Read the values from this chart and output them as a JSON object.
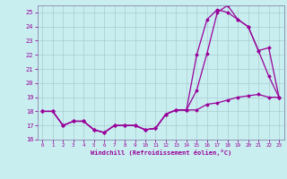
{
  "xlabel": "Windchill (Refroidissement éolien,°C)",
  "xlim": [
    -0.5,
    23.5
  ],
  "ylim": [
    16,
    25.5
  ],
  "yticks": [
    16,
    17,
    18,
    19,
    20,
    21,
    22,
    23,
    24,
    25
  ],
  "xticks": [
    0,
    1,
    2,
    3,
    4,
    5,
    6,
    7,
    8,
    9,
    10,
    11,
    12,
    13,
    14,
    15,
    16,
    17,
    18,
    19,
    20,
    21,
    22,
    23
  ],
  "bg_color": "#c8eef0",
  "grid_color": "#aaccd0",
  "line_color": "#990099",
  "x": [
    0,
    1,
    2,
    3,
    4,
    5,
    6,
    7,
    8,
    9,
    10,
    11,
    12,
    13,
    14,
    15,
    16,
    17,
    18,
    19,
    20,
    21,
    22,
    23
  ],
  "line1_y": [
    18,
    18,
    17,
    17.3,
    17.3,
    16.7,
    16.5,
    17.0,
    17.0,
    17.0,
    16.7,
    16.8,
    17.8,
    18.1,
    18.1,
    19.5,
    22.1,
    25.0,
    25.5,
    24.5,
    24.0,
    22.3,
    20.5,
    19.0
  ],
  "line2_y": [
    18,
    18,
    17,
    17.3,
    17.3,
    16.7,
    16.5,
    17.0,
    17.0,
    17.0,
    16.7,
    16.8,
    17.8,
    18.1,
    18.1,
    22.0,
    24.5,
    25.2,
    25.0,
    24.5,
    24.0,
    22.3,
    22.5,
    19.0
  ],
  "line3_y": [
    18,
    18,
    17,
    17.3,
    17.3,
    16.7,
    16.5,
    17.0,
    17.0,
    17.0,
    16.7,
    16.8,
    17.8,
    18.1,
    18.1,
    18.1,
    18.5,
    18.6,
    18.8,
    19.0,
    19.1,
    19.2,
    19.0,
    19.0
  ]
}
